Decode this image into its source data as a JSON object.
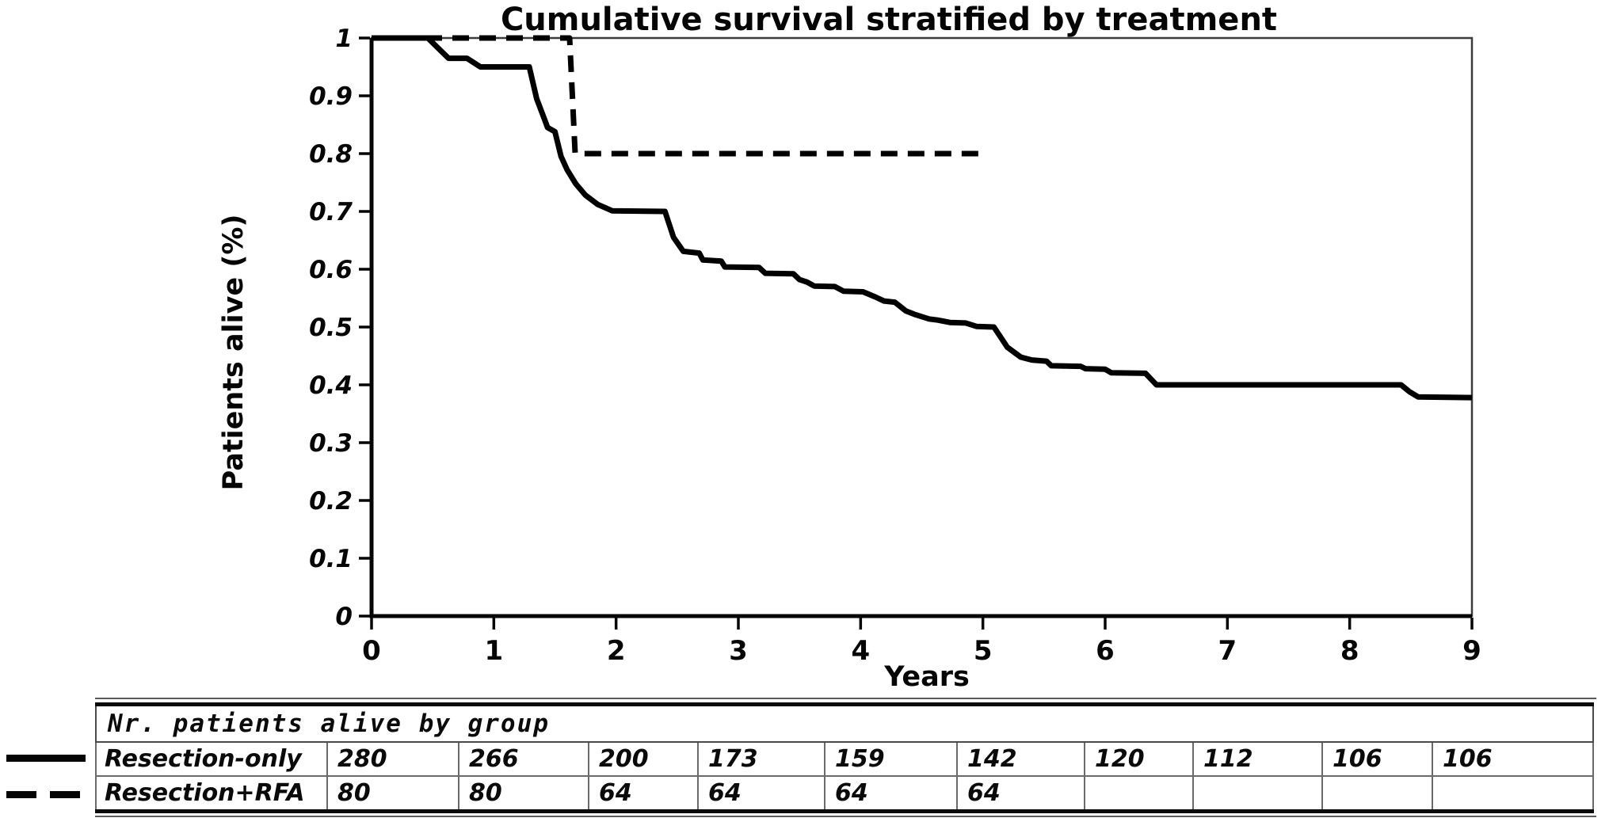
{
  "chart_data": {
    "type": "line",
    "title": "Cumulative survival stratified by treatment",
    "xlabel": "Years",
    "ylabel": "Patients alive (%)",
    "xlim": [
      0,
      9
    ],
    "ylim": [
      0,
      1
    ],
    "x_ticks": [
      0,
      1,
      2,
      3,
      4,
      5,
      6,
      7,
      8,
      9
    ],
    "y_ticks": [
      1,
      0.9,
      0.8,
      0.7,
      0.6,
      0.5,
      0.4,
      0.3,
      0.2,
      0.1,
      0
    ],
    "grid": false,
    "curve_color": "#000000",
    "series": [
      {
        "name": "Resection-only",
        "line_style": "solid",
        "points": [
          [
            0,
            1.0
          ],
          [
            0.46,
            1.0
          ],
          [
            0.63,
            0.965
          ],
          [
            0.78,
            0.965
          ],
          [
            0.89,
            0.95
          ],
          [
            1.29,
            0.95
          ],
          [
            1.35,
            0.895
          ],
          [
            1.41,
            0.862
          ],
          [
            1.44,
            0.845
          ],
          [
            1.5,
            0.838
          ],
          [
            1.55,
            0.795
          ],
          [
            1.6,
            0.772
          ],
          [
            1.67,
            0.748
          ],
          [
            1.75,
            0.728
          ],
          [
            1.85,
            0.712
          ],
          [
            1.97,
            0.701
          ],
          [
            2.4,
            0.7
          ],
          [
            2.47,
            0.655
          ],
          [
            2.55,
            0.631
          ],
          [
            2.68,
            0.628
          ],
          [
            2.71,
            0.616
          ],
          [
            2.86,
            0.614
          ],
          [
            2.89,
            0.604
          ],
          [
            3.17,
            0.603
          ],
          [
            3.22,
            0.593
          ],
          [
            3.45,
            0.592
          ],
          [
            3.5,
            0.582
          ],
          [
            3.56,
            0.578
          ],
          [
            3.62,
            0.571
          ],
          [
            3.79,
            0.57
          ],
          [
            3.86,
            0.562
          ],
          [
            4.02,
            0.561
          ],
          [
            4.12,
            0.552
          ],
          [
            4.19,
            0.545
          ],
          [
            4.28,
            0.543
          ],
          [
            4.37,
            0.528
          ],
          [
            4.44,
            0.522
          ],
          [
            4.56,
            0.514
          ],
          [
            4.63,
            0.512
          ],
          [
            4.73,
            0.508
          ],
          [
            4.86,
            0.507
          ],
          [
            4.95,
            0.501
          ],
          [
            5.09,
            0.5
          ],
          [
            5.2,
            0.465
          ],
          [
            5.31,
            0.448
          ],
          [
            5.4,
            0.443
          ],
          [
            5.52,
            0.441
          ],
          [
            5.56,
            0.433
          ],
          [
            5.8,
            0.432
          ],
          [
            5.84,
            0.428
          ],
          [
            6.0,
            0.427
          ],
          [
            6.05,
            0.421
          ],
          [
            6.33,
            0.42
          ],
          [
            6.42,
            0.4
          ],
          [
            8.42,
            0.4
          ],
          [
            8.49,
            0.388
          ],
          [
            8.56,
            0.379
          ],
          [
            9.0,
            0.378
          ]
        ]
      },
      {
        "name": "Resection+RFA",
        "line_style": "dashed",
        "points": [
          [
            0,
            1.0
          ],
          [
            1.62,
            1.0
          ],
          [
            1.665,
            0.8
          ],
          [
            4.97,
            0.8
          ]
        ]
      }
    ]
  },
  "risk_table": {
    "title": "Nr. patients alive by group",
    "rows": [
      {
        "label": "Resection-only",
        "values": [
          "280",
          "266",
          "200",
          "173",
          "159",
          "142",
          "120",
          "112",
          "106",
          "106"
        ]
      },
      {
        "label": "Resection+RFA",
        "values": [
          "80",
          "80",
          "64",
          "64",
          "64",
          "64",
          "",
          "",
          "",
          ""
        ]
      }
    ]
  }
}
